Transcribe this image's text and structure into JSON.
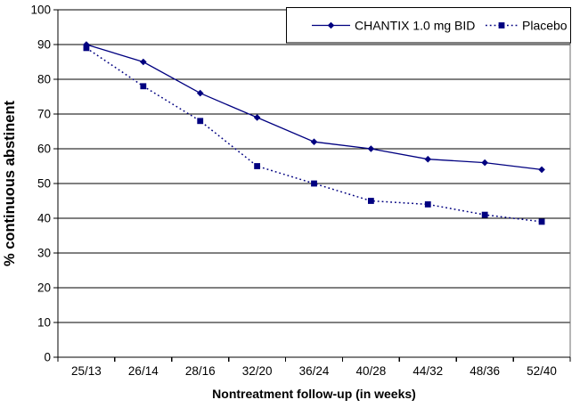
{
  "chart_data": {
    "type": "line",
    "title": "",
    "xlabel": "Nontreatment follow-up (in weeks)",
    "ylabel": "% continuous abstinent",
    "categories": [
      "25/13",
      "26/14",
      "28/16",
      "32/20",
      "36/24",
      "40/28",
      "44/32",
      "48/36",
      "52/40"
    ],
    "series": [
      {
        "name": "CHANTIX 1.0 mg BID",
        "values": [
          90,
          85,
          76,
          69,
          62,
          60,
          57,
          56,
          54
        ],
        "line_style": "solid",
        "marker": "diamond",
        "color": "#000080"
      },
      {
        "name": "Placebo",
        "values": [
          89,
          78,
          68,
          55,
          50,
          45,
          44,
          41,
          39
        ],
        "line_style": "dotted",
        "marker": "square",
        "color": "#000080"
      }
    ],
    "ylim": [
      0,
      100
    ],
    "ytick_step": 10,
    "yticks": [
      "0",
      "10",
      "20",
      "30",
      "40",
      "50",
      "60",
      "70",
      "80",
      "90",
      "100"
    ],
    "grid": "horizontal",
    "grid_color": "#000000",
    "axis_color": "#000000",
    "background": "#ffffff",
    "legend_position": "top-right",
    "legend_border_color": "#000000"
  }
}
